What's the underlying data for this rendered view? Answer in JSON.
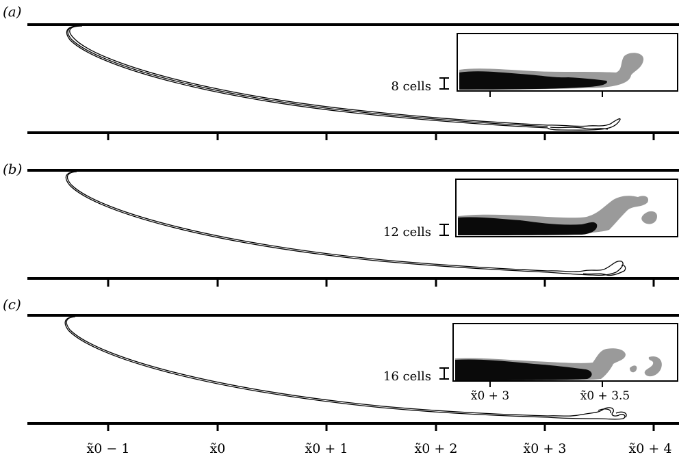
{
  "panels": [
    {
      "label": "(a)",
      "resolution_label": "8 cells"
    },
    {
      "label": "(b)",
      "resolution_label": "12 cells"
    },
    {
      "label": "(c)",
      "resolution_label": "16 cells"
    }
  ],
  "x_ticks": [
    {
      "value": "x0-1",
      "label": "x̃0 − 1"
    },
    {
      "value": "x0",
      "label": "x̃0"
    },
    {
      "value": "x0+1",
      "label": "x̃0 + 1"
    },
    {
      "value": "x0+2",
      "label": "x̃0 + 2"
    },
    {
      "value": "x0+3",
      "label": "x̃0 + 3"
    },
    {
      "value": "x0+4",
      "label": "x̃0 + 4"
    }
  ],
  "inset_ticks": [
    {
      "label": "x̃0 + 3"
    },
    {
      "label": "x̃0 + 3.5"
    }
  ],
  "colors": {
    "line": "#000000",
    "fill_dark": "#0a0a0a",
    "fill_grey": "#9a9a9a",
    "background": "#ffffff"
  }
}
